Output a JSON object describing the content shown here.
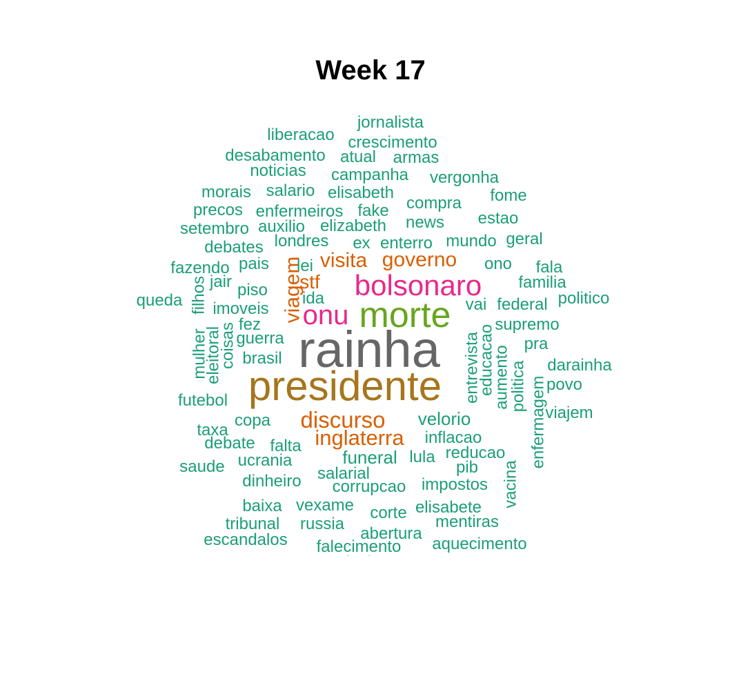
{
  "title": "Week 17",
  "palette": {
    "green": "#1B9E77",
    "orange": "#D95F02",
    "magenta": "#E7298A",
    "lime": "#66A61E",
    "gold": "#A6761D",
    "gray": "#666666"
  },
  "words": [
    {
      "text": "rainha",
      "color": "gray"
    },
    {
      "text": "presidente",
      "color": "gold"
    },
    {
      "text": "morte",
      "color": "lime"
    },
    {
      "text": "bolsonaro",
      "color": "magenta"
    },
    {
      "text": "onu",
      "color": "magenta"
    },
    {
      "text": "discurso",
      "color": "orange"
    },
    {
      "text": "inglaterra",
      "color": "orange"
    },
    {
      "text": "visita",
      "color": "orange"
    },
    {
      "text": "governo",
      "color": "orange"
    },
    {
      "text": "viagem",
      "color": "orange"
    },
    {
      "text": "stf",
      "color": "orange"
    },
    {
      "text": "jornalista",
      "color": "green"
    },
    {
      "text": "liberacao",
      "color": "green"
    },
    {
      "text": "crescimento",
      "color": "green"
    },
    {
      "text": "desabamento",
      "color": "green"
    },
    {
      "text": "atual",
      "color": "green"
    },
    {
      "text": "armas",
      "color": "green"
    },
    {
      "text": "noticias",
      "color": "green"
    },
    {
      "text": "campanha",
      "color": "green"
    },
    {
      "text": "vergonha",
      "color": "green"
    },
    {
      "text": "morais",
      "color": "green"
    },
    {
      "text": "salario",
      "color": "green"
    },
    {
      "text": "elisabeth",
      "color": "green"
    },
    {
      "text": "fome",
      "color": "green"
    },
    {
      "text": "precos",
      "color": "green"
    },
    {
      "text": "enfermeiros",
      "color": "green"
    },
    {
      "text": "fake",
      "color": "green"
    },
    {
      "text": "compra",
      "color": "green"
    },
    {
      "text": "estao",
      "color": "green"
    },
    {
      "text": "setembro",
      "color": "green"
    },
    {
      "text": "auxilio",
      "color": "green"
    },
    {
      "text": "elizabeth",
      "color": "green"
    },
    {
      "text": "news",
      "color": "green"
    },
    {
      "text": "debates",
      "color": "green"
    },
    {
      "text": "londres",
      "color": "green"
    },
    {
      "text": "ex",
      "color": "green"
    },
    {
      "text": "enterro",
      "color": "green"
    },
    {
      "text": "mundo",
      "color": "green"
    },
    {
      "text": "geral",
      "color": "green"
    },
    {
      "text": "fazendo",
      "color": "green"
    },
    {
      "text": "pais",
      "color": "green"
    },
    {
      "text": "lei",
      "color": "green"
    },
    {
      "text": "ono",
      "color": "green"
    },
    {
      "text": "fala",
      "color": "green"
    },
    {
      "text": "jair",
      "color": "green"
    },
    {
      "text": "familia",
      "color": "green"
    },
    {
      "text": "queda",
      "color": "green"
    },
    {
      "text": "filhos",
      "color": "green"
    },
    {
      "text": "piso",
      "color": "green"
    },
    {
      "text": "ida",
      "color": "green"
    },
    {
      "text": "politico",
      "color": "green"
    },
    {
      "text": "imoveis",
      "color": "green"
    },
    {
      "text": "vai",
      "color": "green"
    },
    {
      "text": "federal",
      "color": "green"
    },
    {
      "text": "fez",
      "color": "green"
    },
    {
      "text": "supremo",
      "color": "green"
    },
    {
      "text": "mulher",
      "color": "green"
    },
    {
      "text": "eleitoral",
      "color": "green"
    },
    {
      "text": "coisas",
      "color": "green"
    },
    {
      "text": "guerra",
      "color": "green"
    },
    {
      "text": "entrevista",
      "color": "green"
    },
    {
      "text": "educacao",
      "color": "green"
    },
    {
      "text": "pra",
      "color": "green"
    },
    {
      "text": "brasil",
      "color": "green"
    },
    {
      "text": "aumento",
      "color": "green"
    },
    {
      "text": "politica",
      "color": "green"
    },
    {
      "text": "darainha",
      "color": "green"
    },
    {
      "text": "enfermagem",
      "color": "green"
    },
    {
      "text": "povo",
      "color": "green"
    },
    {
      "text": "futebol",
      "color": "green"
    },
    {
      "text": "viajem",
      "color": "green"
    },
    {
      "text": "copa",
      "color": "green"
    },
    {
      "text": "velorio",
      "color": "green"
    },
    {
      "text": "taxa",
      "color": "green"
    },
    {
      "text": "debate",
      "color": "green"
    },
    {
      "text": "falta",
      "color": "green"
    },
    {
      "text": "inflacao",
      "color": "green"
    },
    {
      "text": "ucrania",
      "color": "green"
    },
    {
      "text": "funeral",
      "color": "green"
    },
    {
      "text": "lula",
      "color": "green"
    },
    {
      "text": "reducao",
      "color": "green"
    },
    {
      "text": "saude",
      "color": "green"
    },
    {
      "text": "pib",
      "color": "green"
    },
    {
      "text": "salarial",
      "color": "green"
    },
    {
      "text": "dinheiro",
      "color": "green"
    },
    {
      "text": "corrupcao",
      "color": "green"
    },
    {
      "text": "impostos",
      "color": "green"
    },
    {
      "text": "vacina",
      "color": "green"
    },
    {
      "text": "baixa",
      "color": "green"
    },
    {
      "text": "vexame",
      "color": "green"
    },
    {
      "text": "corte",
      "color": "green"
    },
    {
      "text": "elisabete",
      "color": "green"
    },
    {
      "text": "tribunal",
      "color": "green"
    },
    {
      "text": "russia",
      "color": "green"
    },
    {
      "text": "mentiras",
      "color": "green"
    },
    {
      "text": "abertura",
      "color": "green"
    },
    {
      "text": "escandalos",
      "color": "green"
    },
    {
      "text": "falecimento",
      "color": "green"
    },
    {
      "text": "aquecimento",
      "color": "green"
    },
    {
      "text": "agricultura",
      "color": "green"
    }
  ]
}
